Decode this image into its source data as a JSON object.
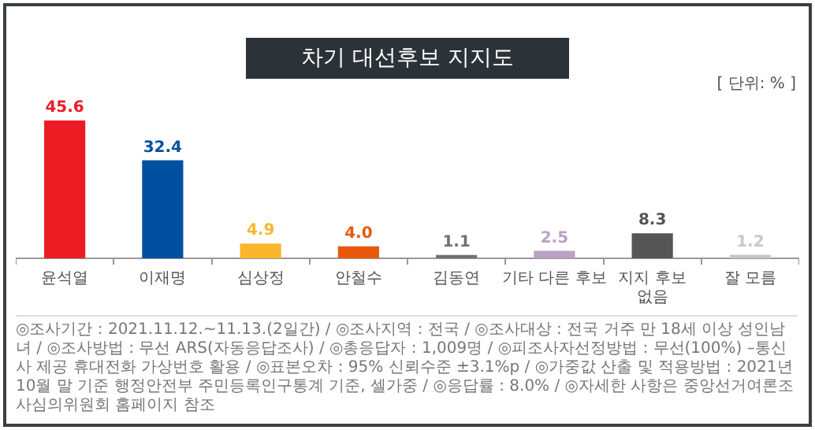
{
  "chart_data": {
    "type": "bar",
    "title": "차기 대선후보 지지도",
    "categories": [
      "윤석열",
      "이재명",
      "심상정",
      "안철수",
      "김동연",
      "기타 다른 후보",
      "지지 후보\n없음",
      "잘 모름"
    ],
    "values": [
      45.6,
      32.4,
      4.9,
      4.0,
      1.1,
      2.5,
      8.3,
      1.2
    ],
    "colors": [
      "#ed1c24",
      "#0050a0",
      "#fbb62c",
      "#e8590c",
      "#707070",
      "#b9a2c4",
      "#555555",
      "#c8c8c8"
    ],
    "value_labels": [
      "45.6",
      "32.4",
      "4.9",
      "4.0",
      "1.1",
      "2.5",
      "8.3",
      "1.2"
    ],
    "grid": false,
    "legend": false,
    "annotations": [
      "[ 단위: % ]",
      "◎조사기간 : 2021.11.12.~11.13.(2일간) / ◎조사지역 : 전국 / ◎조사대상 : 전국 거주 만 18세 이상 성인남녀 / ◎조사방법 : 무선 ARS(자동응답조사) / ◎총응답자 : 1,009명 / ◎피조사자선정방법 : 무선(100%) –통신사 제공 휴대전화 가상번호 활용 / ◎표본오차 : 95% 신뢰수준 ±3.1%p / ◎가중값 산출 및 적용방법 : 2021년 10월 말 기준 행정안전부 주민등록인구통계 기준, 셀가중 / ◎응답률 : 8.0% / ◎자세한 사항은 중앙선거여론조사심의위원회 홈페이지 참조"
    ]
  }
}
